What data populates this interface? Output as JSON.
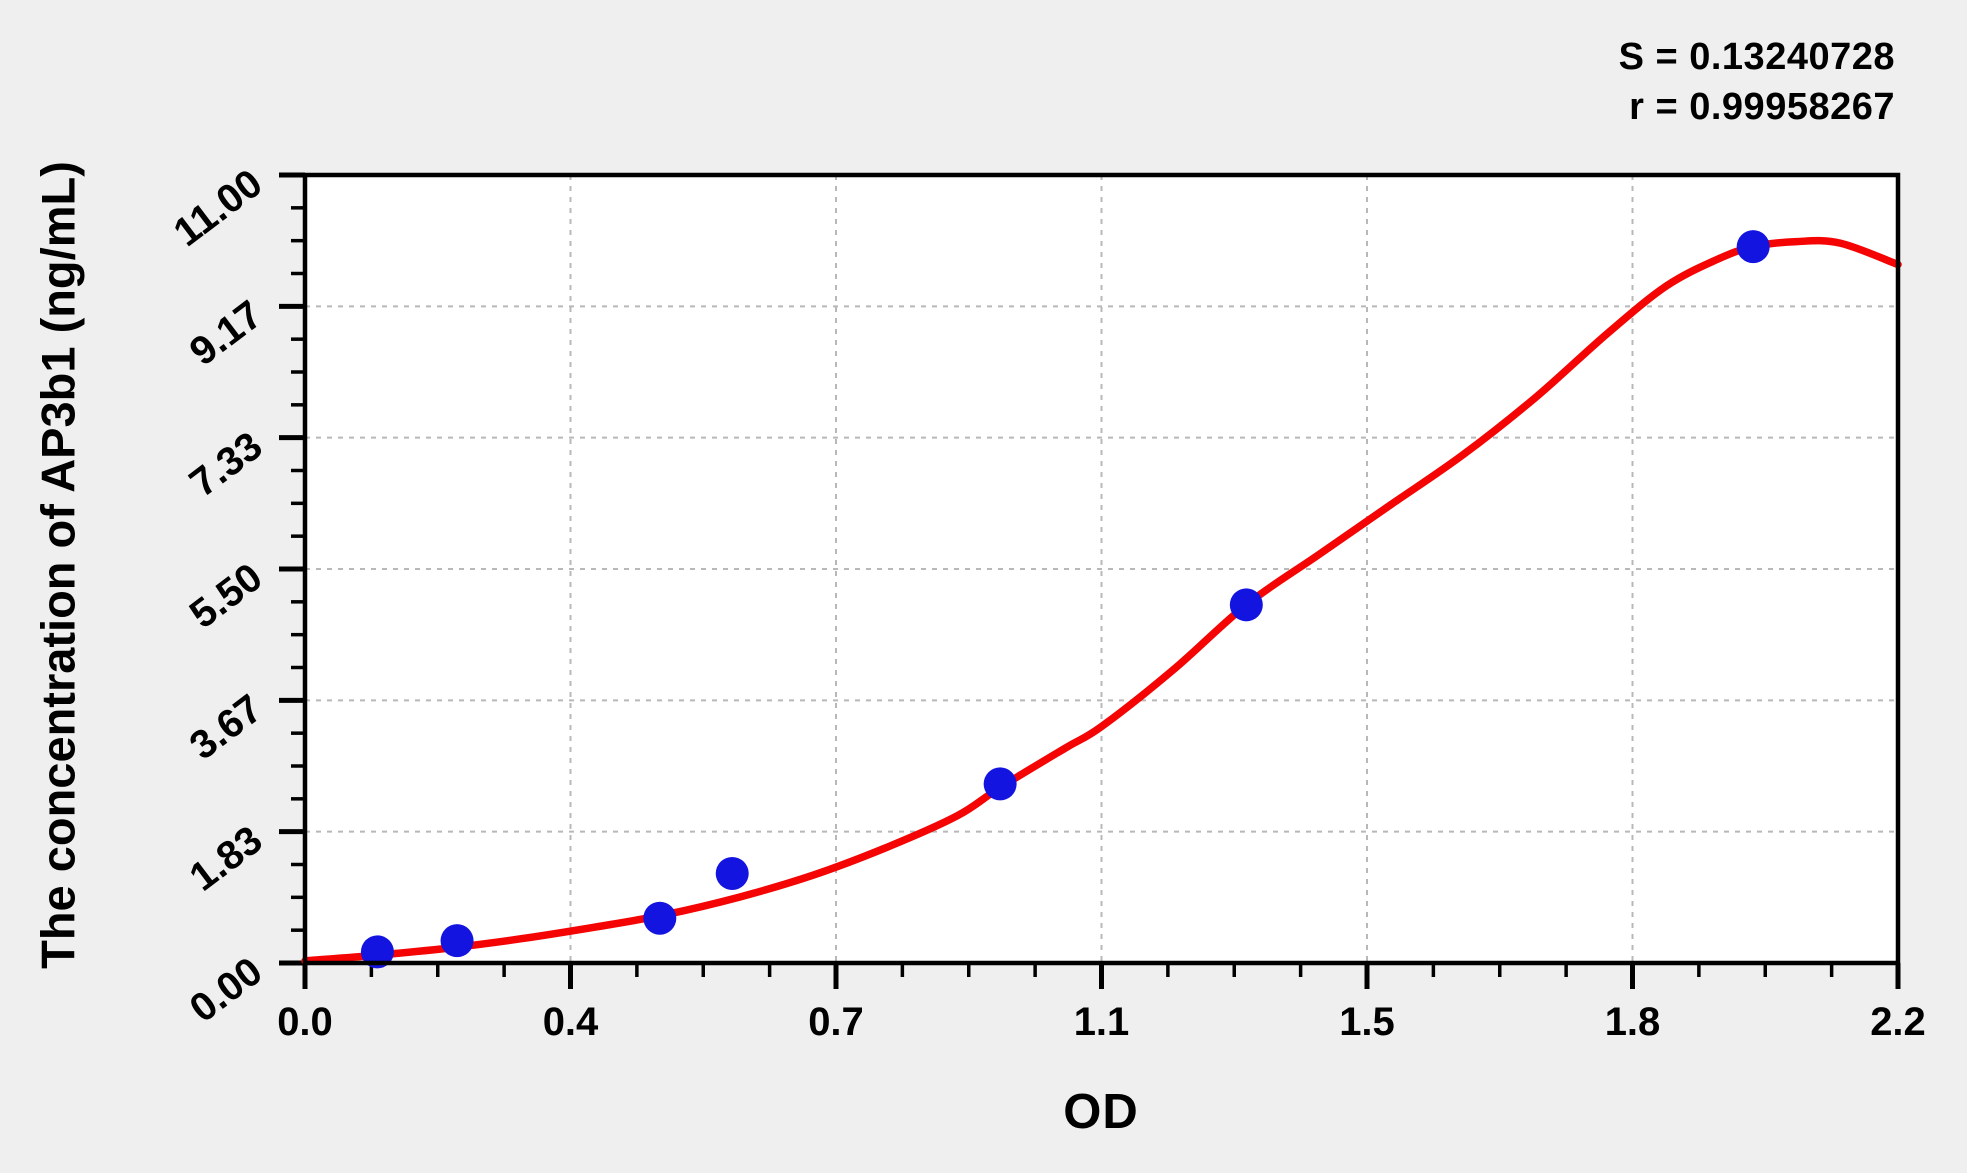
{
  "page": {
    "background_color": "#efefef",
    "plot_background_color": "#ffffff",
    "frame_color": "#000000",
    "grid_color": "#b8b8b8"
  },
  "stats_panel": {
    "s_line": "S = 0.13240728",
    "r_line": "r = 0.99958267"
  },
  "chart_data": {
    "type": "scatter",
    "title": "",
    "xlabel": "OD",
    "ylabel": "The concentration of AP3b1 (ng/mL)",
    "xlim": [
      0,
      2.2
    ],
    "ylim": [
      0,
      11
    ],
    "x_ticks": {
      "labels": [
        "0.0",
        "0.4",
        "0.7",
        "1.1",
        "1.5",
        "1.8",
        "2.2"
      ],
      "minor_per_interval": 3
    },
    "y_ticks": {
      "labels": [
        "0.00",
        "1.83",
        "3.67",
        "5.50",
        "7.33",
        "9.17",
        "11.00"
      ],
      "minor_per_interval": 3
    },
    "grid": "dashed lines at major ticks",
    "legend": "none",
    "annotations": [
      "S = 0.13240728",
      "r = 0.99958267"
    ],
    "series": [
      {
        "name": "standard points",
        "type": "scatter",
        "color": "#1414e0",
        "marker": "filled circle",
        "points_od_conc": [
          [
            0.1,
            0.156
          ],
          [
            0.21,
            0.312
          ],
          [
            0.49,
            0.625
          ],
          [
            0.59,
            1.25
          ],
          [
            0.96,
            2.5
          ],
          [
            1.3,
            5.0
          ],
          [
            2.0,
            10.0
          ]
        ]
      },
      {
        "name": "fitted standard curve",
        "type": "line",
        "color": "#f50404",
        "points_od_conc": [
          [
            0.0,
            0.03
          ],
          [
            0.1,
            0.11
          ],
          [
            0.2,
            0.21
          ],
          [
            0.3,
            0.34
          ],
          [
            0.4,
            0.5
          ],
          [
            0.5,
            0.68
          ],
          [
            0.6,
            0.92
          ],
          [
            0.7,
            1.22
          ],
          [
            0.8,
            1.6
          ],
          [
            0.9,
            2.05
          ],
          [
            0.96,
            2.45
          ],
          [
            1.05,
            3.0
          ],
          [
            1.1,
            3.3
          ],
          [
            1.2,
            4.1
          ],
          [
            1.3,
            5.0
          ],
          [
            1.4,
            5.7
          ],
          [
            1.5,
            6.4
          ],
          [
            1.6,
            7.1
          ],
          [
            1.7,
            7.9
          ],
          [
            1.8,
            8.8
          ],
          [
            1.88,
            9.45
          ],
          [
            1.95,
            9.82
          ],
          [
            2.0,
            10.0
          ],
          [
            2.06,
            10.07
          ],
          [
            2.12,
            10.05
          ],
          [
            2.2,
            9.75
          ]
        ]
      }
    ]
  }
}
